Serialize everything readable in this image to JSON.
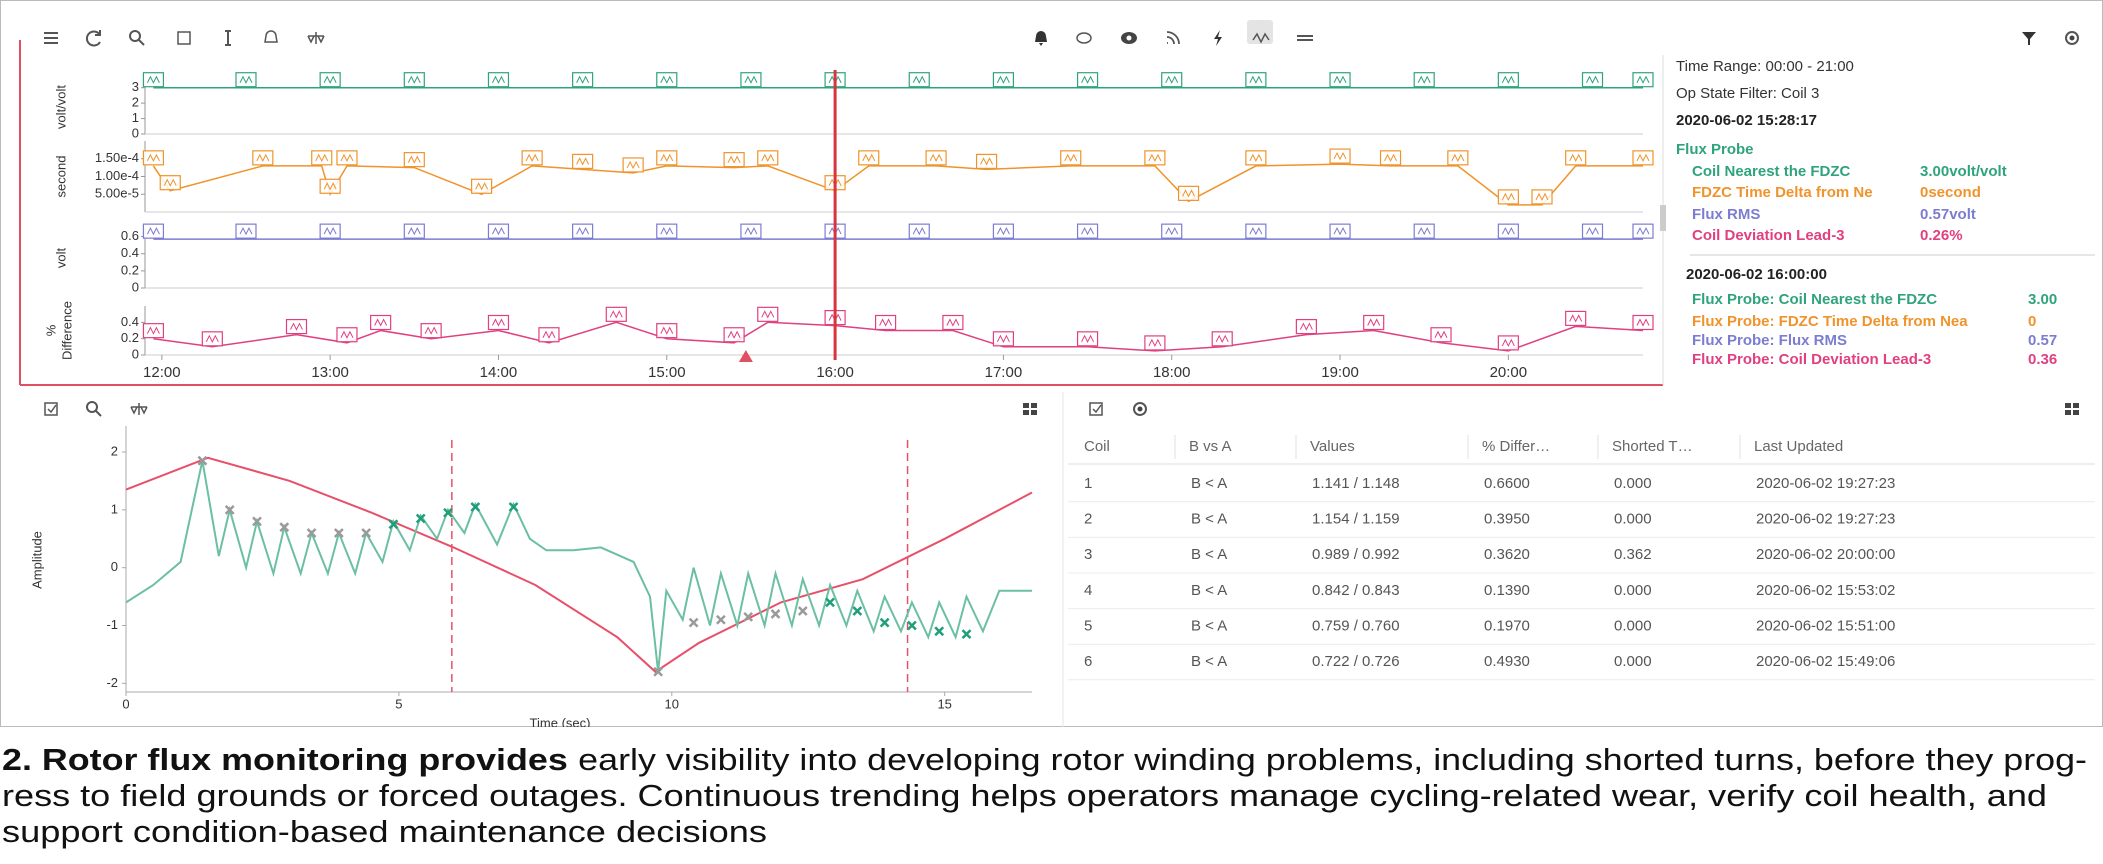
{
  "trend": {
    "xlim": [
      11.9,
      20.8
    ],
    "xticks": [
      {
        "value": 12,
        "label": "12:00"
      },
      {
        "value": 13,
        "label": "13:00"
      },
      {
        "value": 14,
        "label": "14:00"
      },
      {
        "value": 15,
        "label": "15:00"
      },
      {
        "value": 16,
        "label": "16:00"
      },
      {
        "value": 17,
        "label": "17:00"
      },
      {
        "value": 18,
        "label": "18:00"
      },
      {
        "value": 19,
        "label": "19:00"
      },
      {
        "value": 20,
        "label": "20:00"
      }
    ],
    "cursor_time": 16,
    "event_time": 15.47,
    "panels": [
      {
        "ylabel": "volt/volt",
        "ylim": [
          0,
          3.5
        ],
        "yticks": [
          0,
          1,
          2,
          3
        ],
        "series": {
          "color": "#2fa47c",
          "x": [
            11.95,
            12.5,
            13.0,
            13.5,
            14.0,
            14.5,
            15.0,
            15.5,
            16.0,
            16.5,
            17.0,
            17.5,
            18.0,
            18.5,
            19.0,
            19.5,
            20.0,
            20.5,
            20.8
          ],
          "values": [
            3,
            3,
            3,
            3,
            3,
            3,
            3,
            3,
            3,
            3,
            3,
            3,
            3,
            3,
            3,
            3,
            3,
            3,
            3
          ]
        }
      },
      {
        "ylabel": "second",
        "ylim": [
          0,
          0.0002
        ],
        "yticks": [
          {
            "value": 5e-05,
            "label": "5.00e-5"
          },
          {
            "value": 0.0001,
            "label": "1.00e-4"
          },
          {
            "value": 0.00015,
            "label": "1.50e-4"
          }
        ],
        "series": {
          "color": "#f0932b",
          "x": [
            11.95,
            12.05,
            12.6,
            12.95,
            13.0,
            13.1,
            13.5,
            13.9,
            14.2,
            14.5,
            14.8,
            15.0,
            15.4,
            15.6,
            16.0,
            16.2,
            16.6,
            16.9,
            17.4,
            17.9,
            18.1,
            18.5,
            19.0,
            19.3,
            19.7,
            20.0,
            20.2,
            20.4,
            20.8
          ],
          "values": [
            0.00013,
            6e-05,
            0.00013,
            0.00013,
            5e-05,
            0.00013,
            0.000125,
            5e-05,
            0.00013,
            0.00012,
            0.00011,
            0.00013,
            0.000125,
            0.00013,
            6e-05,
            0.00013,
            0.00013,
            0.00012,
            0.00013,
            0.00013,
            3e-05,
            0.00013,
            0.000135,
            0.00013,
            0.00013,
            2e-05,
            2e-05,
            0.00013,
            0.00013
          ]
        }
      },
      {
        "ylabel": "volt",
        "ylim": [
          0,
          0.7
        ],
        "yticks": [
          0,
          0.2,
          0.4,
          0.6
        ],
        "series": {
          "color": "#7c7cd2",
          "x": [
            11.95,
            12.5,
            13.0,
            13.5,
            14.0,
            14.5,
            15.0,
            15.5,
            16.0,
            16.5,
            17.0,
            17.5,
            18.0,
            18.5,
            19.0,
            19.5,
            20.0,
            20.5,
            20.8
          ],
          "values": [
            0.57,
            0.57,
            0.57,
            0.57,
            0.57,
            0.57,
            0.57,
            0.57,
            0.57,
            0.57,
            0.57,
            0.57,
            0.57,
            0.57,
            0.57,
            0.57,
            0.57,
            0.57,
            0.57
          ]
        }
      },
      {
        "ylabel": [
          "%",
          "Difference"
        ],
        "ylim": [
          0,
          0.6
        ],
        "yticks": [
          0,
          0.2,
          0.4
        ],
        "series": {
          "color": "#e0407f",
          "x": [
            11.95,
            12.3,
            12.8,
            13.1,
            13.3,
            13.6,
            14.0,
            14.3,
            14.7,
            15.0,
            15.4,
            15.6,
            16.0,
            16.3,
            16.7,
            17.0,
            17.5,
            17.9,
            18.3,
            18.8,
            19.2,
            19.6,
            20.0,
            20.4,
            20.8
          ],
          "values": [
            0.2,
            0.1,
            0.25,
            0.15,
            0.3,
            0.2,
            0.3,
            0.15,
            0.4,
            0.2,
            0.15,
            0.4,
            0.36,
            0.3,
            0.3,
            0.1,
            0.1,
            0.05,
            0.1,
            0.25,
            0.3,
            0.15,
            0.05,
            0.35,
            0.3
          ]
        }
      }
    ]
  },
  "info": {
    "time_range": "Time Range: 00:00 - 21:00",
    "filter": "Op State Filter: Coil 3",
    "snapshot1": {
      "timestamp": "2020-06-02 15:28:17",
      "group": "Flux Probe",
      "rows": [
        {
          "label": "Coil Nearest the FDZC",
          "value": "3.00volt/volt"
        },
        {
          "label": "FDZC Time Delta from Ne",
          "value": "0second"
        },
        {
          "label": "Flux RMS",
          "value": "0.57volt"
        },
        {
          "label": "Coil Deviation Lead-3",
          "value": "0.26%"
        }
      ]
    },
    "snapshot2": {
      "timestamp": "2020-06-02 16:00:00",
      "rows": [
        {
          "label": "Flux Probe: Coil Nearest the FDZC",
          "value": "3.00"
        },
        {
          "label": "Flux Probe: FDZC Time Delta from Nea",
          "value": "0"
        },
        {
          "label": "Flux Probe: Flux RMS",
          "value": "0.57"
        },
        {
          "label": "Flux Probe: Coil Deviation Lead-3",
          "value": "0.36"
        }
      ]
    }
  },
  "waveform": {
    "ylabel": "Amplitude",
    "xlabel": "Time (sec)",
    "xlim": [
      0,
      16.6
    ],
    "ylim": [
      -2.15,
      2.45
    ],
    "xticks": [
      0,
      5,
      10,
      15
    ],
    "yticks": [
      -2,
      -1,
      0,
      1,
      2
    ],
    "cursor_lines": [
      5.97,
      14.32
    ],
    "series": [
      {
        "color": "#e8506a",
        "x": [
          0,
          1.5,
          3,
          4.5,
          6,
          7.5,
          9,
          9.7,
          10.5,
          12,
          13.5,
          15,
          16.6
        ],
        "values": [
          1.35,
          1.9,
          1.5,
          0.95,
          0.35,
          -0.3,
          -1.2,
          -1.8,
          -1.3,
          -0.6,
          -0.2,
          0.5,
          1.3
        ]
      },
      {
        "color": "#6bbfa2",
        "x": [
          0,
          0.5,
          1.0,
          1.4,
          1.7,
          1.9,
          2.2,
          2.4,
          2.7,
          2.9,
          3.2,
          3.4,
          3.7,
          3.9,
          4.2,
          4.4,
          4.7,
          4.9,
          5.2,
          5.4,
          5.7,
          5.9,
          6.2,
          6.4,
          6.8,
          7.1,
          7.4,
          7.7,
          8.2,
          8.7,
          9.3,
          9.6,
          9.75,
          9.9,
          10.2,
          10.4,
          10.7,
          10.9,
          11.2,
          11.4,
          11.7,
          11.9,
          12.2,
          12.4,
          12.7,
          12.9,
          13.2,
          13.4,
          13.7,
          13.9,
          14.2,
          14.4,
          14.7,
          14.9,
          15.2,
          15.4,
          15.7,
          16.0,
          16.6
        ],
        "values": [
          -0.6,
          -0.3,
          0.1,
          1.85,
          0.2,
          1.0,
          0.0,
          0.8,
          -0.1,
          0.7,
          -0.1,
          0.6,
          -0.1,
          0.6,
          -0.1,
          0.6,
          0.1,
          0.8,
          0.3,
          0.9,
          0.5,
          1.0,
          0.6,
          1.1,
          0.4,
          1.1,
          0.5,
          0.3,
          0.3,
          0.35,
          0.1,
          -0.5,
          -1.8,
          -0.4,
          -0.9,
          0.0,
          -1.0,
          -0.1,
          -1.0,
          -0.1,
          -1.0,
          -0.1,
          -1.0,
          -0.2,
          -1.0,
          -0.3,
          -1.0,
          -0.4,
          -1.1,
          -0.5,
          -1.1,
          -0.6,
          -1.2,
          -0.6,
          -1.2,
          -0.5,
          -1.1,
          -0.4,
          -0.4
        ]
      }
    ],
    "markers": [
      {
        "color": "#9a9a9a",
        "x": [
          1.4,
          1.9,
          2.4,
          2.9,
          3.4,
          3.9,
          4.4,
          9.75,
          10.4,
          10.9,
          11.4,
          11.9,
          12.4
        ],
        "values": [
          1.85,
          1.0,
          0.8,
          0.7,
          0.6,
          0.6,
          0.6,
          -1.8,
          -0.95,
          -0.9,
          -0.85,
          -0.8,
          -0.75
        ]
      },
      {
        "color": "#1f9e7a",
        "x": [
          4.9,
          5.4,
          5.9,
          6.4,
          7.1,
          12.9,
          13.4,
          13.9,
          14.4,
          14.9,
          15.4
        ],
        "values": [
          0.75,
          0.85,
          0.95,
          1.05,
          1.05,
          -0.6,
          -0.75,
          -0.95,
          -1.0,
          -1.1,
          -1.15
        ]
      }
    ]
  },
  "table": {
    "headers": [
      "Coil",
      "B vs A",
      "Values",
      "% Differ…",
      "Shorted T…",
      "Last Updated"
    ],
    "rows": [
      [
        "1",
        "B < A",
        "1.141 / 1.148",
        "0.6600",
        "0.000",
        "2020-06-02 19:27:23"
      ],
      [
        "2",
        "B < A",
        "1.154 / 1.159",
        "0.3950",
        "0.000",
        "2020-06-02 19:27:23"
      ],
      [
        "3",
        "B < A",
        "0.989 / 0.992",
        "0.3620",
        "0.362",
        "2020-06-02 20:00:00"
      ],
      [
        "4",
        "B < A",
        "0.842 / 0.843",
        "0.1390",
        "0.000",
        "2020-06-02 15:53:02"
      ],
      [
        "5",
        "B < A",
        "0.759 / 0.760",
        "0.1970",
        "0.000",
        "2020-06-02 15:51:00"
      ],
      [
        "6",
        "B < A",
        "0.722 / 0.726",
        "0.4930",
        "0.000",
        "2020-06-02 15:49:06"
      ]
    ]
  },
  "caption": {
    "bold": "2. Rotor flux monitoring provides",
    "lines": [
      "early visibility into developing rotor winding problems, including shorted turns, before they prog-",
      "ress to field grounds or forced outages. Continuous trending helps operators manage cycling-related wear, verify coil health, and",
      "support condition-based maintenance decisions"
    ]
  }
}
